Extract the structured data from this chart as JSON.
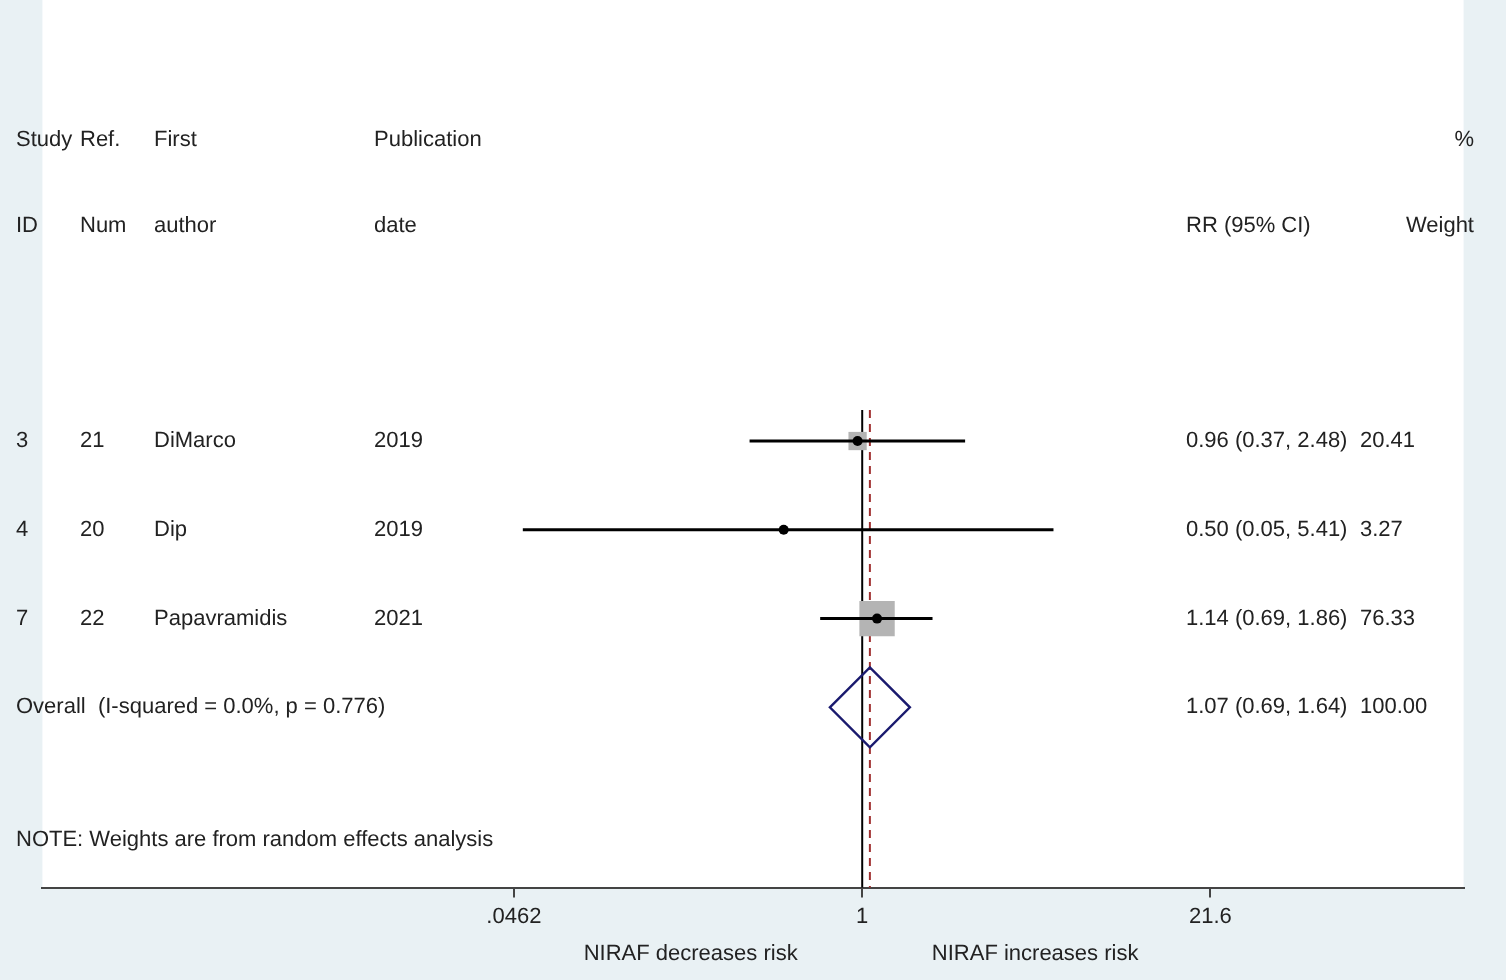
{
  "chart_data": {
    "type": "scatter",
    "orientation": "horizontal",
    "categories": [
      "DiMarco",
      "Dip",
      "Papavramidis",
      "Overall  (I-squared = 0.0%, p = 0.776)"
    ],
    "series": [
      {
        "marker": "square",
        "color": "#b4b4b4",
        "values": [
          0.96,
          0.5,
          1.14,
          null
        ],
        "errors": [
          [
            0.37,
            2.48
          ],
          [
            0.05,
            5.41
          ],
          [
            0.69,
            1.86
          ],
          null
        ],
        "sizes": [
          0.267,
          0.043,
          1,
          null
        ]
      },
      {
        "marker": "diamond",
        "color": "#1a1a6e",
        "values": [
          null,
          null,
          null,
          1.07
        ]
      }
    ],
    "log": "x",
    "xlim": [
      0.00072,
      202
    ],
    "xticks": [
      {
        "value": 0.0462,
        "label": ".0462"
      },
      1,
      21.6
    ],
    "grid": false,
    "legend": false,
    "ref_lines": [
      {
        "axis": "x",
        "value": 1,
        "color": "#000000",
        "line_style": "solid"
      },
      {
        "axis": "x",
        "value": 1.07,
        "color": "#a03030",
        "line_style": "dashed"
      }
    ],
    "annotations": [
      "Study\nID",
      "Ref.\nNum",
      "First\nauthor",
      "Publication\ndate",
      "RR (95% CI)",
      "%\nWeight",
      "NOTE: Weights are from random effects analysis",
      "NIRAF decreases risk",
      "NIRAF increases risk",
      "3",
      "21",
      "2019",
      "0.96 (0.37, 2.48)",
      "20.41",
      "4",
      "20",
      "2019",
      "0.50 (0.05, 5.41)",
      "3.27",
      "7",
      "22",
      "2021",
      "1.14 (0.69, 1.86)",
      "76.33",
      "1.07 (0.69, 1.64)",
      "100.00"
    ]
  }
}
